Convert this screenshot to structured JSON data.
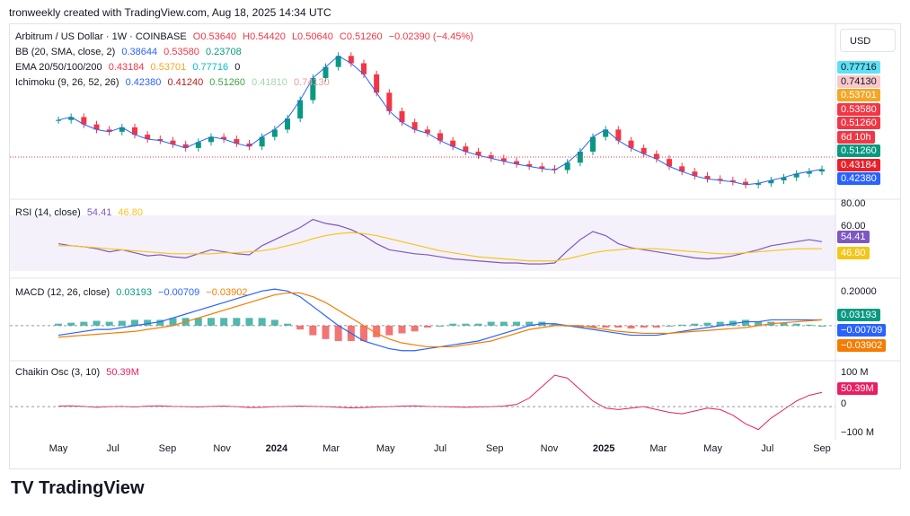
{
  "header": {
    "text": "tronweekly created with TradingView.com, Aug 18, 2025 14:34 UTC"
  },
  "currency": "USD",
  "logo": {
    "mark": "TV",
    "text": "TradingView"
  },
  "legend": {
    "main": {
      "symbol": "Arbitrum / US Dollar · 1W · COINBASE",
      "o": "O0.53640",
      "h": "H0.54420",
      "l": "L0.50640",
      "c": "C0.51260",
      "chg": "−0.02390 (−4.45%)"
    },
    "bb": {
      "label": "BB (20, SMA, close, 2)",
      "v1": "0.38644",
      "v2": "0.53580",
      "v3": "0.23708"
    },
    "ema": {
      "label": "EMA 20/50/100/200",
      "v1": "0.43184",
      "v2": "0.53701",
      "v3": "0.77716",
      "v4": "0"
    },
    "ichi": {
      "label": "Ichimoku (9, 26, 52, 26)",
      "v1": "0.42380",
      "v2": "0.41240",
      "v3": "0.51260",
      "v4": "0.41810",
      "v5": "0.74130"
    },
    "rsi": {
      "label": "RSI (14, close)",
      "v1": "54.41",
      "v2": "46.80"
    },
    "macd": {
      "label": "MACD (12, 26, close)",
      "v1": "0.03193",
      "v2": "−0.00709",
      "v3": "−0.03902"
    },
    "chaikin": {
      "label": "Chaikin Osc (3, 10)",
      "v1": "50.39M"
    }
  },
  "price_tags": [
    {
      "text": "0.77716",
      "bg": "#5ee0f5",
      "fg": "#131722"
    },
    {
      "text": "0.74130",
      "bg": "#f7c9c9",
      "fg": "#131722"
    },
    {
      "text": "0.53701",
      "bg": "#f5a623",
      "fg": "#ffffff"
    },
    {
      "text": "0.53580",
      "bg": "#f23645",
      "fg": "#ffffff"
    },
    {
      "text": "0.51260",
      "bg": "#f23645",
      "fg": "#ffffff"
    },
    {
      "text": "6d 10h",
      "bg": "#f23645",
      "fg": "#ffffff"
    },
    {
      "text": "0.51260",
      "bg": "#089981",
      "fg": "#ffffff"
    },
    {
      "text": "0.43184",
      "bg": "#e8202a",
      "fg": "#ffffff"
    },
    {
      "text": "0.42380",
      "bg": "#2962ff",
      "fg": "#ffffff"
    }
  ],
  "pane_axes": {
    "rsi": [
      "80.00",
      "60.00",
      "54.41",
      "46.80"
    ],
    "macd": [
      "0.20000",
      "0.03193",
      "−0.00709",
      "−0.03902"
    ],
    "chaikin": [
      "100 M",
      "50.39M",
      "0",
      "−100 M"
    ]
  },
  "chart_data": {
    "type": "line",
    "x": [
      "May",
      "Jul",
      "Sep",
      "Nov",
      "2024",
      "Mar",
      "May",
      "Jul",
      "Sep",
      "Nov",
      "2025",
      "Mar",
      "May",
      "Jul",
      "Sep"
    ],
    "price_close": [
      1.18,
      1.22,
      1.12,
      1.05,
      1.02,
      1.08,
      0.98,
      0.92,
      0.9,
      0.85,
      0.8,
      0.88,
      0.95,
      0.92,
      0.86,
      0.82,
      0.95,
      1.05,
      1.2,
      1.45,
      1.75,
      1.9,
      2.05,
      1.95,
      1.8,
      1.55,
      1.3,
      1.15,
      1.05,
      1.0,
      0.9,
      0.82,
      0.75,
      0.7,
      0.66,
      0.62,
      0.58,
      0.55,
      0.52,
      0.5,
      0.6,
      0.75,
      0.95,
      1.05,
      0.9,
      0.8,
      0.72,
      0.65,
      0.55,
      0.48,
      0.42,
      0.38,
      0.36,
      0.34,
      0.3,
      0.32,
      0.36,
      0.4,
      0.45,
      0.48,
      0.51
    ],
    "rsi": [
      52,
      50,
      49,
      47,
      44,
      46,
      43,
      40,
      41,
      39,
      38,
      42,
      46,
      44,
      42,
      41,
      50,
      56,
      62,
      68,
      76,
      72,
      70,
      66,
      60,
      52,
      46,
      44,
      42,
      41,
      39,
      37,
      36,
      35,
      34,
      33,
      33,
      32,
      32,
      33,
      45,
      56,
      64,
      60,
      52,
      48,
      46,
      44,
      42,
      40,
      38,
      37,
      38,
      40,
      43,
      46,
      50,
      52,
      54,
      56,
      54
    ],
    "rsi_ma": [
      50,
      50,
      49,
      48,
      47,
      46,
      45,
      44,
      43,
      42,
      42,
      42,
      42,
      43,
      43,
      44,
      45,
      47,
      50,
      53,
      57,
      60,
      62,
      63,
      62,
      60,
      57,
      54,
      51,
      48,
      45,
      43,
      41,
      39,
      38,
      37,
      36,
      35,
      35,
      35,
      37,
      40,
      43,
      45,
      46,
      47,
      47,
      47,
      46,
      45,
      44,
      43,
      42,
      42,
      43,
      44,
      45,
      46,
      47,
      47,
      47
    ],
    "macd": [
      -0.05,
      -0.04,
      -0.03,
      -0.02,
      -0.02,
      -0.01,
      0.0,
      0.01,
      0.02,
      0.04,
      0.06,
      0.08,
      0.1,
      0.12,
      0.14,
      0.16,
      0.18,
      0.19,
      0.18,
      0.15,
      0.1,
      0.05,
      0.0,
      -0.04,
      -0.08,
      -0.1,
      -0.12,
      -0.13,
      -0.13,
      -0.12,
      -0.11,
      -0.1,
      -0.09,
      -0.08,
      -0.06,
      -0.04,
      -0.02,
      0.0,
      0.01,
      0.01,
      0.0,
      -0.01,
      -0.02,
      -0.03,
      -0.04,
      -0.05,
      -0.05,
      -0.05,
      -0.04,
      -0.03,
      -0.02,
      -0.01,
      0.0,
      0.01,
      0.02,
      0.02,
      0.03,
      0.03,
      0.03,
      0.03,
      0.03
    ],
    "signal": [
      -0.06,
      -0.055,
      -0.05,
      -0.045,
      -0.04,
      -0.035,
      -0.03,
      -0.02,
      -0.01,
      0.0,
      0.02,
      0.04,
      0.06,
      0.08,
      0.1,
      0.12,
      0.14,
      0.16,
      0.17,
      0.17,
      0.15,
      0.12,
      0.08,
      0.04,
      0.0,
      -0.04,
      -0.07,
      -0.09,
      -0.1,
      -0.11,
      -0.11,
      -0.11,
      -0.1,
      -0.09,
      -0.08,
      -0.06,
      -0.04,
      -0.02,
      -0.01,
      0.0,
      0.0,
      0.0,
      -0.01,
      -0.02,
      -0.03,
      -0.035,
      -0.04,
      -0.04,
      -0.04,
      -0.035,
      -0.03,
      -0.025,
      -0.02,
      -0.015,
      -0.01,
      0.0,
      0.01,
      0.015,
      0.02,
      0.025,
      0.03
    ],
    "chaikin": [
      2,
      3,
      1,
      -2,
      0,
      1,
      -1,
      2,
      3,
      1,
      0,
      -1,
      1,
      2,
      0,
      -3,
      -2,
      0,
      1,
      2,
      1,
      0,
      -2,
      -4,
      -3,
      -1,
      0,
      2,
      3,
      1,
      0,
      -1,
      -2,
      -1,
      0,
      2,
      8,
      30,
      70,
      110,
      100,
      60,
      20,
      -5,
      -10,
      -5,
      0,
      -10,
      -20,
      -25,
      -15,
      -5,
      -10,
      -30,
      -60,
      -80,
      -40,
      -10,
      20,
      40,
      50
    ],
    "ylabel": "USD"
  }
}
